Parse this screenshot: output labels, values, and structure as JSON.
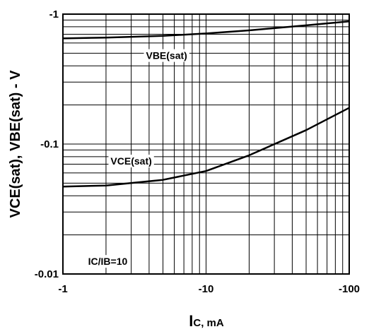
{
  "chart_data": {
    "type": "line",
    "x_scale": "log",
    "y_scale": "log",
    "x_range": [
      -1,
      -100
    ],
    "y_range": [
      -0.01,
      -1
    ],
    "grid": true,
    "xlabel_main": "I",
    "xlabel_sub": "C, mA",
    "ylabel": "VCE(sat), VBE(sat) - V",
    "x_ticks": [
      {
        "value": -1,
        "label": "-1"
      },
      {
        "value": -10,
        "label": "-10"
      },
      {
        "value": -100,
        "label": "-100"
      }
    ],
    "y_ticks": [
      {
        "value": -1,
        "label": "-1"
      },
      {
        "value": -0.1,
        "label": "-0.1"
      },
      {
        "value": -0.01,
        "label": "-0.01"
      }
    ],
    "condition_label": "IC/IB=10",
    "series": [
      {
        "name": "VBE(sat)",
        "x": [
          -1,
          -2,
          -5,
          -10,
          -20,
          -50,
          -100
        ],
        "y": [
          -0.65,
          -0.66,
          -0.68,
          -0.71,
          -0.75,
          -0.82,
          -0.88
        ]
      },
      {
        "name": "VCE(sat)",
        "x": [
          -1,
          -2,
          -5,
          -10,
          -20,
          -50,
          -100
        ],
        "y": [
          -0.047,
          -0.048,
          -0.053,
          -0.062,
          -0.082,
          -0.128,
          -0.19
        ]
      }
    ]
  }
}
